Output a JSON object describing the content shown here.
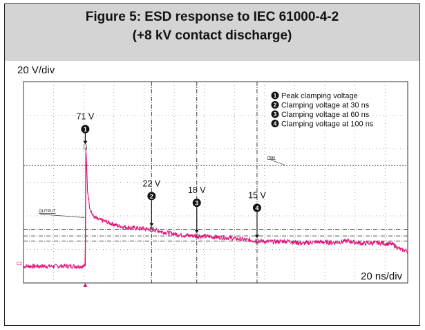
{
  "figure": {
    "title_line1": "Figure 5: ESD response to IEC 61000-4-2",
    "title_line2": "(+8 kV contact discharge)",
    "y_scale": "20 V/div",
    "x_scale": "20 ns/div"
  },
  "chart_data": {
    "type": "line",
    "title": "Figure 5: ESD response to IEC 61000-4-2 (+8 kV contact discharge)",
    "series": [
      {
        "name": "OUTPUT",
        "color": "#e0147c",
        "x": [
          -55,
          -15,
          -14,
          -13.5,
          -12.5,
          -11,
          -9,
          -6,
          -2,
          3,
          8,
          15,
          22,
          30,
          40,
          50,
          60,
          70,
          80,
          90,
          100,
          110,
          120,
          130,
          140,
          150,
          160,
          170,
          180,
          190,
          195,
          200
        ],
        "y": [
          0,
          0,
          0,
          71,
          45,
          35,
          30,
          28,
          27,
          25.5,
          24,
          23,
          22.5,
          22,
          20,
          18.5,
          18,
          17.5,
          17,
          16,
          15,
          14.5,
          15,
          13.5,
          14.5,
          14,
          15,
          13.5,
          14,
          13,
          10,
          9
        ]
      }
    ],
    "x_unit": "ns",
    "y_unit": "V",
    "x_range": [
      -55,
      200
    ],
    "y_range": [
      -10,
      110
    ],
    "grid": true,
    "annotations": [
      {
        "id": 1,
        "marker": "1",
        "label": "71 V",
        "x": -14,
        "y": 71,
        "description": "Peak clamping voltage"
      },
      {
        "id": 2,
        "marker": "2",
        "label": "22 V",
        "x": 30,
        "y": 22,
        "description": "Clamping voltage at 30 ns"
      },
      {
        "id": 3,
        "marker": "3",
        "label": "18 V",
        "x": 60,
        "y": 18,
        "description": "Clamping voltage at 60 ns"
      },
      {
        "id": 4,
        "marker": "4",
        "label": "15 V",
        "x": 100,
        "y": 15,
        "description": "Clamping voltage at 100 ns"
      }
    ],
    "trace_label": "OUTPUT",
    "max_label": "max",
    "channel_label": "C2"
  },
  "colors": {
    "trace": "#e0147c",
    "grid": "#8a8a8a",
    "header_bg": "#d4d4d4"
  }
}
